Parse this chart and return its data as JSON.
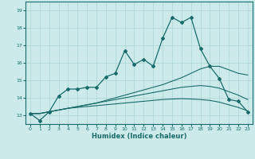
{
  "xlabel": "Humidex (Indice chaleur)",
  "bg_color": "#cceaea",
  "line_color": "#1a6b6b",
  "grid_color": "#aad4d4",
  "x_ticks": [
    0,
    1,
    2,
    3,
    4,
    5,
    6,
    7,
    8,
    9,
    10,
    11,
    12,
    13,
    14,
    15,
    16,
    17,
    18,
    19,
    20,
    21,
    22,
    23
  ],
  "y_ticks": [
    13,
    14,
    15,
    16,
    17,
    18,
    19
  ],
  "xlim": [
    -0.5,
    23.5
  ],
  "ylim": [
    12.5,
    19.5
  ],
  "main_line": [
    13.1,
    12.7,
    13.2,
    14.1,
    14.5,
    14.5,
    14.6,
    14.6,
    15.2,
    15.4,
    16.7,
    15.9,
    16.2,
    15.8,
    17.4,
    18.6,
    18.3,
    18.6,
    16.8,
    15.8,
    15.1,
    13.9,
    13.8,
    13.2
  ],
  "smooth_line1": [
    13.1,
    13.1,
    13.2,
    13.3,
    13.4,
    13.5,
    13.6,
    13.7,
    13.85,
    14.0,
    14.15,
    14.3,
    14.45,
    14.6,
    14.75,
    14.95,
    15.15,
    15.4,
    15.65,
    15.8,
    15.8,
    15.6,
    15.4,
    15.3
  ],
  "smooth_line2": [
    13.1,
    13.1,
    13.2,
    13.3,
    13.4,
    13.5,
    13.6,
    13.7,
    13.8,
    13.9,
    14.0,
    14.1,
    14.2,
    14.3,
    14.4,
    14.5,
    14.6,
    14.65,
    14.7,
    14.65,
    14.55,
    14.35,
    14.15,
    13.9
  ],
  "smooth_line3": [
    13.1,
    13.1,
    13.2,
    13.3,
    13.4,
    13.45,
    13.5,
    13.55,
    13.6,
    13.65,
    13.7,
    13.75,
    13.8,
    13.85,
    13.9,
    13.93,
    13.95,
    13.93,
    13.9,
    13.85,
    13.75,
    13.6,
    13.45,
    13.25
  ]
}
